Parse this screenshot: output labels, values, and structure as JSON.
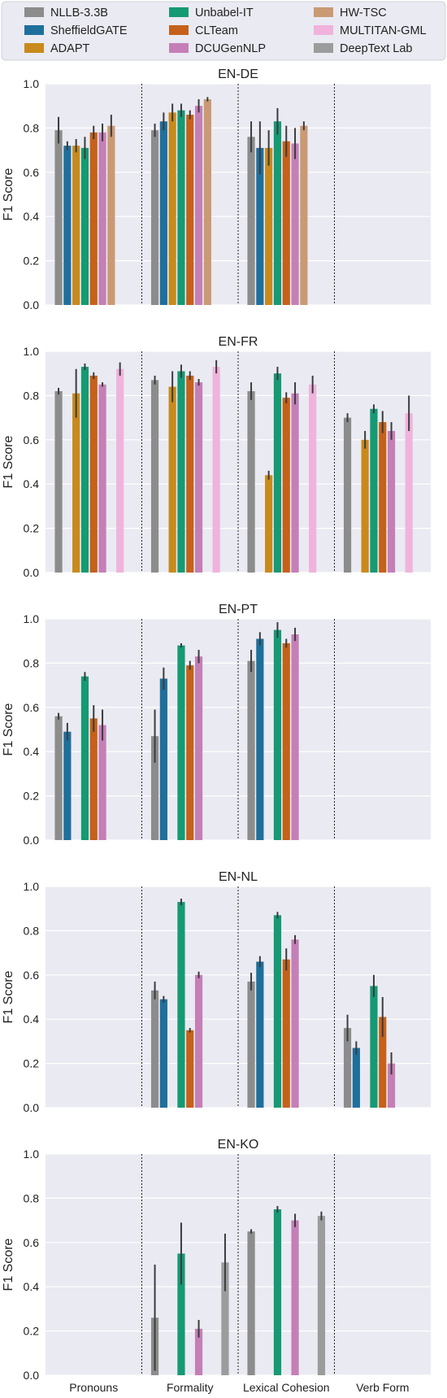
{
  "colors": {
    "plot_bg": "#eaeaf2",
    "grid": "#ffffff",
    "error_bar": "#3c3c3c",
    "separator": "#222222"
  },
  "legend": {
    "placement": "top",
    "entries": [
      {
        "name": "NLLB-3.3B",
        "color": "#8c8c8c"
      },
      {
        "name": "SheffieldGATE",
        "color": "#1f6f9c"
      },
      {
        "name": "ADAPT",
        "color": "#c88a1c"
      },
      {
        "name": "Unbabel-IT",
        "color": "#159a73"
      },
      {
        "name": "CLTeam",
        "color": "#c5611a"
      },
      {
        "name": "DCUGenNLP",
        "color": "#c47fb7"
      },
      {
        "name": "HW-TSC",
        "color": "#c99a73"
      },
      {
        "name": "MULTITAN-GML",
        "color": "#f0b3dc"
      },
      {
        "name": "DeepText Lab",
        "color": "#9c9c9c"
      }
    ]
  },
  "chart_data": [
    {
      "type": "bar",
      "title": "EN-DE",
      "ylabel": "F1 Score",
      "ylim": [
        0,
        1.0
      ],
      "grid": true,
      "categories": [
        "Pronouns",
        "Formality",
        "Lexical Cohesion",
        "Verb Form"
      ],
      "yticks": [
        "0.0",
        "0.2",
        "0.4",
        "0.6",
        "0.8",
        "1.0"
      ],
      "series": [
        {
          "name": "NLLB-3.3B",
          "values": [
            0.79,
            0.79,
            0.76,
            null
          ],
          "err": [
            0.06,
            0.03,
            0.07,
            null
          ]
        },
        {
          "name": "SheffieldGATE",
          "values": [
            0.72,
            0.83,
            0.71,
            null
          ],
          "err": [
            0.02,
            0.04,
            0.12,
            null
          ]
        },
        {
          "name": "ADAPT",
          "values": [
            0.72,
            0.87,
            0.71,
            null
          ],
          "err": [
            0.03,
            0.04,
            0.08,
            null
          ]
        },
        {
          "name": "Unbabel-IT",
          "values": [
            0.71,
            0.88,
            0.83,
            null
          ],
          "err": [
            0.05,
            0.03,
            0.06,
            null
          ]
        },
        {
          "name": "CLTeam",
          "values": [
            0.78,
            0.86,
            0.74,
            null
          ],
          "err": [
            0.03,
            0.02,
            0.07,
            null
          ]
        },
        {
          "name": "DCUGenNLP",
          "values": [
            0.78,
            0.9,
            0.73,
            null
          ],
          "err": [
            0.04,
            0.03,
            0.07,
            null
          ]
        },
        {
          "name": "HW-TSC",
          "values": [
            0.81,
            0.93,
            0.81,
            null
          ],
          "err": [
            0.05,
            0.01,
            0.02,
            null
          ]
        },
        {
          "name": "MULTITAN-GML",
          "values": [
            null,
            null,
            null,
            null
          ],
          "err": [
            null,
            null,
            null,
            null
          ]
        },
        {
          "name": "DeepText Lab",
          "values": [
            null,
            null,
            null,
            null
          ],
          "err": [
            null,
            null,
            null,
            null
          ]
        }
      ]
    },
    {
      "type": "bar",
      "title": "EN-FR",
      "ylabel": "F1 Score",
      "ylim": [
        0,
        1.0
      ],
      "grid": true,
      "categories": [
        "Pronouns",
        "Formality",
        "Lexical Cohesion",
        "Verb Form"
      ],
      "yticks": [
        "0.0",
        "0.2",
        "0.4",
        "0.6",
        "0.8",
        "1.0"
      ],
      "series": [
        {
          "name": "NLLB-3.3B",
          "values": [
            0.82,
            0.87,
            0.82,
            0.7
          ],
          "err": [
            0.015,
            0.02,
            0.04,
            0.02
          ]
        },
        {
          "name": "SheffieldGATE",
          "values": [
            null,
            null,
            null,
            null
          ],
          "err": [
            null,
            null,
            null,
            null
          ]
        },
        {
          "name": "ADAPT",
          "values": [
            0.81,
            0.84,
            0.44,
            0.6
          ],
          "err": [
            0.11,
            0.07,
            0.02,
            0.04
          ]
        },
        {
          "name": "Unbabel-IT",
          "values": [
            0.93,
            0.91,
            0.9,
            0.74
          ],
          "err": [
            0.015,
            0.03,
            0.03,
            0.02
          ]
        },
        {
          "name": "CLTeam",
          "values": [
            0.89,
            0.89,
            0.79,
            0.68
          ],
          "err": [
            0.015,
            0.02,
            0.025,
            0.05
          ]
        },
        {
          "name": "DCUGenNLP",
          "values": [
            0.85,
            0.86,
            0.81,
            0.64
          ],
          "err": [
            0.01,
            0.015,
            0.05,
            0.04
          ]
        },
        {
          "name": "HW-TSC",
          "values": [
            null,
            null,
            null,
            null
          ],
          "err": [
            null,
            null,
            null,
            null
          ]
        },
        {
          "name": "MULTITAN-GML",
          "values": [
            0.92,
            0.93,
            0.85,
            0.72
          ],
          "err": [
            0.03,
            0.03,
            0.04,
            0.08
          ]
        },
        {
          "name": "DeepText Lab",
          "values": [
            null,
            null,
            null,
            null
          ],
          "err": [
            null,
            null,
            null,
            null
          ]
        }
      ]
    },
    {
      "type": "bar",
      "title": "EN-PT",
      "ylabel": "F1 Score",
      "ylim": [
        0,
        1.0
      ],
      "grid": true,
      "categories": [
        "Pronouns",
        "Formality",
        "Lexical Cohesion",
        "Verb Form"
      ],
      "yticks": [
        "0.0",
        "0.2",
        "0.4",
        "0.6",
        "0.8",
        "1.0"
      ],
      "series": [
        {
          "name": "NLLB-3.3B",
          "values": [
            0.56,
            0.47,
            0.81,
            null
          ],
          "err": [
            0.015,
            0.12,
            0.05,
            null
          ]
        },
        {
          "name": "SheffieldGATE",
          "values": [
            0.49,
            0.73,
            0.91,
            null
          ],
          "err": [
            0.04,
            0.05,
            0.03,
            null
          ]
        },
        {
          "name": "ADAPT",
          "values": [
            null,
            null,
            null,
            null
          ],
          "err": [
            null,
            null,
            null,
            null
          ]
        },
        {
          "name": "Unbabel-IT",
          "values": [
            0.74,
            0.88,
            0.95,
            null
          ],
          "err": [
            0.02,
            0.01,
            0.035,
            null
          ]
        },
        {
          "name": "CLTeam",
          "values": [
            0.55,
            0.79,
            0.89,
            null
          ],
          "err": [
            0.06,
            0.02,
            0.02,
            null
          ]
        },
        {
          "name": "DCUGenNLP",
          "values": [
            0.52,
            0.83,
            0.93,
            null
          ],
          "err": [
            0.07,
            0.03,
            0.03,
            null
          ]
        },
        {
          "name": "HW-TSC",
          "values": [
            null,
            null,
            null,
            null
          ],
          "err": [
            null,
            null,
            null,
            null
          ]
        },
        {
          "name": "MULTITAN-GML",
          "values": [
            null,
            null,
            null,
            null
          ],
          "err": [
            null,
            null,
            null,
            null
          ]
        },
        {
          "name": "DeepText Lab",
          "values": [
            null,
            null,
            null,
            null
          ],
          "err": [
            null,
            null,
            null,
            null
          ]
        }
      ]
    },
    {
      "type": "bar",
      "title": "EN-NL",
      "ylabel": "F1 Score",
      "ylim": [
        0,
        1.0
      ],
      "grid": true,
      "categories": [
        "Pronouns",
        "Formality",
        "Lexical Cohesion",
        "Verb Form"
      ],
      "yticks": [
        "0.0",
        "0.2",
        "0.4",
        "0.6",
        "0.8",
        "1.0"
      ],
      "series": [
        {
          "name": "NLLB-3.3B",
          "values": [
            null,
            0.53,
            0.57,
            0.36
          ],
          "err": [
            null,
            0.04,
            0.04,
            0.06
          ]
        },
        {
          "name": "SheffieldGATE",
          "values": [
            null,
            0.49,
            0.66,
            0.27
          ],
          "err": [
            null,
            0.015,
            0.025,
            0.03
          ]
        },
        {
          "name": "ADAPT",
          "values": [
            null,
            null,
            null,
            null
          ],
          "err": [
            null,
            null,
            null,
            null
          ]
        },
        {
          "name": "Unbabel-IT",
          "values": [
            null,
            0.93,
            0.87,
            0.55
          ],
          "err": [
            null,
            0.015,
            0.015,
            0.05
          ]
        },
        {
          "name": "CLTeam",
          "values": [
            null,
            0.35,
            0.67,
            0.41
          ],
          "err": [
            null,
            0.01,
            0.05,
            0.09
          ]
        },
        {
          "name": "DCUGenNLP",
          "values": [
            null,
            0.6,
            0.76,
            0.2
          ],
          "err": [
            null,
            0.015,
            0.02,
            0.05
          ]
        },
        {
          "name": "HW-TSC",
          "values": [
            null,
            null,
            null,
            null
          ],
          "err": [
            null,
            null,
            null,
            null
          ]
        },
        {
          "name": "MULTITAN-GML",
          "values": [
            null,
            null,
            null,
            null
          ],
          "err": [
            null,
            null,
            null,
            null
          ]
        },
        {
          "name": "DeepText Lab",
          "values": [
            null,
            null,
            null,
            null
          ],
          "err": [
            null,
            null,
            null,
            null
          ]
        }
      ]
    },
    {
      "type": "bar",
      "title": "EN-KO",
      "ylabel": "F1 Score",
      "ylim": [
        0,
        1.0
      ],
      "grid": true,
      "categories": [
        "Pronouns",
        "Formality",
        "Lexical Cohesion",
        "Verb Form"
      ],
      "yticks": [
        "0.0",
        "0.2",
        "0.4",
        "0.6",
        "0.8",
        "1.0"
      ],
      "series": [
        {
          "name": "NLLB-3.3B",
          "values": [
            null,
            0.26,
            0.65,
            null
          ],
          "err": [
            null,
            0.24,
            0.01,
            null
          ]
        },
        {
          "name": "SheffieldGATE",
          "values": [
            null,
            null,
            null,
            null
          ],
          "err": [
            null,
            null,
            null,
            null
          ]
        },
        {
          "name": "ADAPT",
          "values": [
            null,
            null,
            null,
            null
          ],
          "err": [
            null,
            null,
            null,
            null
          ]
        },
        {
          "name": "Unbabel-IT",
          "values": [
            null,
            0.55,
            0.75,
            null
          ],
          "err": [
            null,
            0.14,
            0.015,
            null
          ]
        },
        {
          "name": "CLTeam",
          "values": [
            null,
            null,
            null,
            null
          ],
          "err": [
            null,
            null,
            null,
            null
          ]
        },
        {
          "name": "DCUGenNLP",
          "values": [
            null,
            0.21,
            0.7,
            null
          ],
          "err": [
            null,
            0.04,
            0.03,
            null
          ]
        },
        {
          "name": "HW-TSC",
          "values": [
            null,
            null,
            null,
            null
          ],
          "err": [
            null,
            null,
            null,
            null
          ]
        },
        {
          "name": "MULTITAN-GML",
          "values": [
            null,
            null,
            null,
            null
          ],
          "err": [
            null,
            null,
            null,
            null
          ]
        },
        {
          "name": "DeepText Lab",
          "values": [
            null,
            0.51,
            0.72,
            null
          ],
          "err": [
            null,
            0.13,
            0.02,
            null
          ]
        }
      ]
    }
  ]
}
